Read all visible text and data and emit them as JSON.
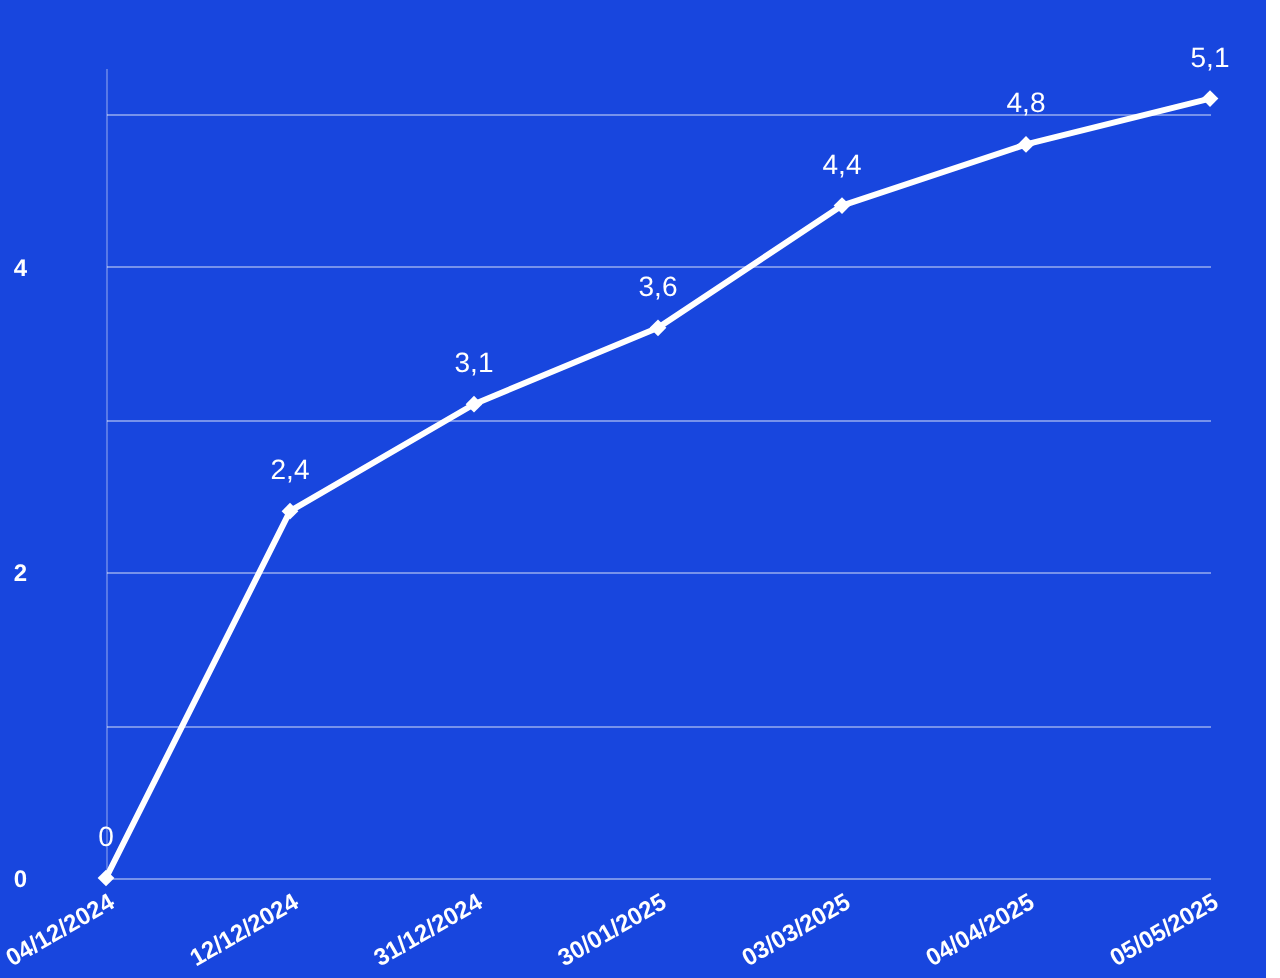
{
  "chart_data": {
    "type": "line",
    "categories": [
      "04/12/2024",
      "12/12/2024",
      "31/12/2024",
      "30/01/2025",
      "03/03/2025",
      "04/04/2025",
      "05/05/2025"
    ],
    "series": [
      {
        "color": "#ffffff",
        "values": [
          0,
          2.4,
          3.1,
          3.6,
          4.4,
          4.8,
          5.1
        ],
        "value_labels": [
          "0",
          "2,4",
          "3,1",
          "3,6",
          "4,4",
          "4,8",
          "5,1"
        ]
      }
    ],
    "ylim": [
      0,
      5.3
    ],
    "yticks": [
      0,
      {
        "value": 1,
        "label": null
      },
      2,
      {
        "value": 3,
        "label": null
      },
      4,
      {
        "value": 5,
        "label": null
      }
    ],
    "grid": "y",
    "marker": "diamond",
    "line_style": "solid"
  }
}
